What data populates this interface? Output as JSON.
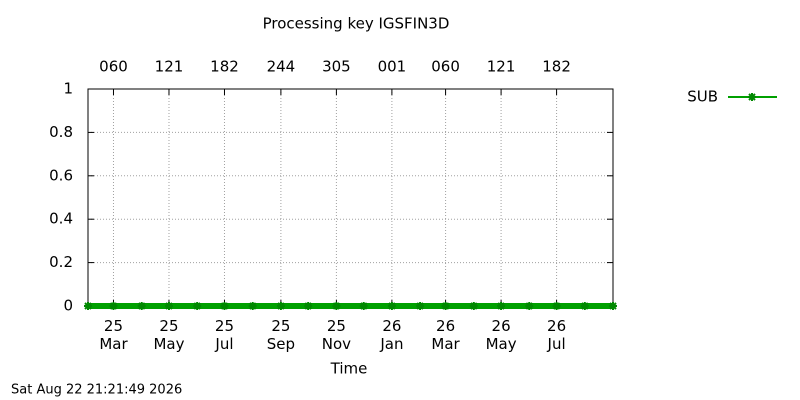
{
  "chart_data": {
    "type": "line",
    "title": "Processing key IGSFIN3D",
    "x_label": "Time",
    "footer": "Sat Aug 22 21:21:49 2026",
    "xlim": [
      "2025-02",
      "2026-09"
    ],
    "xticks": [
      {
        "value": "2025-03",
        "label": "25\nMar"
      },
      {
        "value": "2025-05",
        "label": "25\nMay"
      },
      {
        "value": "2025-07",
        "label": "25\nJul"
      },
      {
        "value": "2025-09",
        "label": "25\nSep"
      },
      {
        "value": "2025-11",
        "label": "25\nNov"
      },
      {
        "value": "2026-01",
        "label": "26\nJan"
      },
      {
        "value": "2026-03",
        "label": "26\nMar"
      },
      {
        "value": "2026-05",
        "label": "26\nMay"
      },
      {
        "value": "2026-07",
        "label": "26\nJul"
      }
    ],
    "x2ticks": [
      {
        "value": "2025-03",
        "label": "060"
      },
      {
        "value": "2025-05",
        "label": "121"
      },
      {
        "value": "2025-07",
        "label": "182"
      },
      {
        "value": "2025-09",
        "label": "244"
      },
      {
        "value": "2025-11",
        "label": "305"
      },
      {
        "value": "2026-01",
        "label": "001"
      },
      {
        "value": "2026-03",
        "label": "060"
      },
      {
        "value": "2026-05",
        "label": "121"
      },
      {
        "value": "2026-07",
        "label": "182"
      }
    ],
    "ylim": [
      0,
      1
    ],
    "yticks": [
      0,
      0.2,
      0.4,
      0.6,
      0.8,
      1
    ],
    "grid": true,
    "legend": "right",
    "x": [
      "2025-02",
      "2025-03",
      "2025-04",
      "2025-05",
      "2025-06",
      "2025-07",
      "2025-08",
      "2025-09",
      "2025-10",
      "2025-11",
      "2025-12",
      "2026-01",
      "2026-02",
      "2026-03",
      "2026-04",
      "2026-05",
      "2026-06",
      "2026-07",
      "2026-08",
      "2026-09"
    ],
    "series": [
      {
        "name": "SUB",
        "color": "#00a000",
        "values": [
          0,
          0,
          0,
          0,
          0,
          0,
          0,
          0,
          0,
          0,
          0,
          0,
          0,
          0,
          0,
          0,
          0,
          0,
          0,
          0
        ]
      }
    ]
  }
}
